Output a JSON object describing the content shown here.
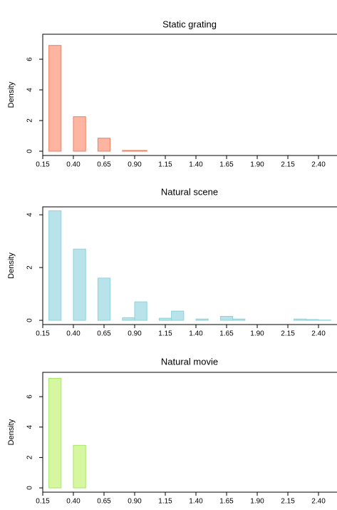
{
  "chart_data": [
    {
      "type": "histogram",
      "title": "Static grating",
      "y_label": "Density",
      "bins": [
        0.2,
        0.3,
        0.4,
        0.5,
        0.6,
        0.7,
        0.8,
        0.9,
        1.0
      ],
      "values": [
        6.9,
        0,
        2.25,
        0,
        0.85,
        0,
        0.05,
        0.05
      ],
      "color": "#fdb4a0",
      "edge_color": "#f07f60",
      "xlim": [
        0.15,
        2.58
      ],
      "ylim": [
        -0.28,
        7.63
      ],
      "yticks": [
        0,
        2,
        4,
        6
      ],
      "xticks": [
        0.15,
        {
          "value": 0.4,
          "label": "0.40"
        },
        0.65,
        {
          "value": 0.9,
          "label": "0.90"
        },
        1.15,
        {
          "value": 1.4,
          "label": "1.40"
        },
        1.65,
        {
          "value": 1.9,
          "label": "1.90"
        },
        2.15,
        {
          "value": 2.4,
          "label": "2.40"
        }
      ]
    },
    {
      "type": "histogram",
      "title": "Natural scene",
      "y_label": "Density",
      "bins": [
        0.2,
        0.3,
        0.4,
        0.5,
        0.6,
        0.7,
        0.8,
        0.9,
        1.0,
        1.1,
        1.2,
        1.3,
        1.4,
        1.5,
        1.6,
        1.7,
        1.8,
        1.9,
        2.0,
        2.1,
        2.2,
        2.3,
        2.4,
        2.5
      ],
      "values": [
        4.15,
        0,
        2.7,
        0,
        1.6,
        0,
        0.1,
        0.7,
        0,
        0.08,
        0.35,
        0,
        0.05,
        0,
        0.15,
        0.05,
        0,
        0,
        0,
        0,
        0.05,
        0.03,
        0.01
      ],
      "color": "#b9e3ea",
      "edge_color": "#8dd3df",
      "xlim": [
        0.15,
        2.58
      ],
      "ylim": [
        -0.16,
        4.3
      ],
      "yticks": [
        0,
        2,
        4
      ],
      "xticks": [
        0.15,
        {
          "value": 0.4,
          "label": "0.40"
        },
        0.65,
        {
          "value": 0.9,
          "label": "0.90"
        },
        1.15,
        {
          "value": 1.4,
          "label": "1.40"
        },
        1.65,
        {
          "value": 1.9,
          "label": "1.90"
        },
        2.15,
        {
          "value": 2.4,
          "label": "2.40"
        }
      ]
    },
    {
      "type": "histogram",
      "title": "Natural movie",
      "y_label": "Density",
      "bins": [
        0.2,
        0.3,
        0.4,
        0.5
      ],
      "values": [
        7.2,
        0,
        2.8
      ],
      "color": "#d6f7a0",
      "edge_color": "#a6e66a",
      "xlim": [
        0.15,
        2.58
      ],
      "ylim": [
        -0.28,
        7.6
      ],
      "yticks": [
        0,
        2,
        4,
        6
      ],
      "xticks": [
        0.15,
        {
          "value": 0.4,
          "label": "0.40"
        },
        0.65,
        {
          "value": 0.9,
          "label": "0.90"
        },
        1.15,
        {
          "value": 1.4,
          "label": "1.40"
        },
        1.65,
        {
          "value": 1.9,
          "label": "1.90"
        },
        2.15,
        {
          "value": 2.4,
          "label": "2.40"
        }
      ]
    }
  ]
}
